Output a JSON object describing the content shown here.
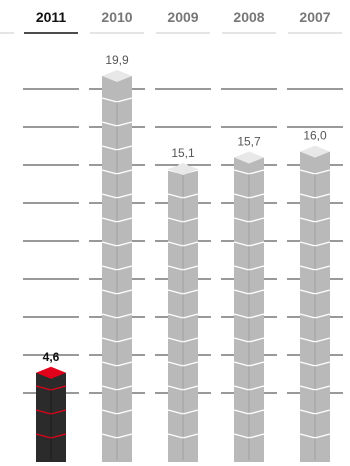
{
  "chart_data": {
    "type": "bar",
    "categories": [
      "2011",
      "2010",
      "2009",
      "2008",
      "2007"
    ],
    "values": [
      4.6,
      19.9,
      15.1,
      15.7,
      16.0
    ],
    "value_labels": [
      "4,6",
      "19,9",
      "15,1",
      "15,7",
      "16,0"
    ],
    "highlight_category": "2011",
    "title": "",
    "xlabel": "",
    "ylabel": "",
    "ylim": [
      0,
      20
    ],
    "grid": true,
    "legend": "none",
    "colors": {
      "highlight_bar": "#2b2b2b",
      "highlight_accent": "#e2001a",
      "bar": "#b9b9b9",
      "bar_dark": "#8d8d8d",
      "bar_top": "#e8e8e8",
      "grid": "#333333",
      "header_active_text": "#111111",
      "header_inactive_text": "#777777",
      "header_active_rule": "#111111",
      "header_inactive_rule": "#c8c8c8"
    }
  }
}
